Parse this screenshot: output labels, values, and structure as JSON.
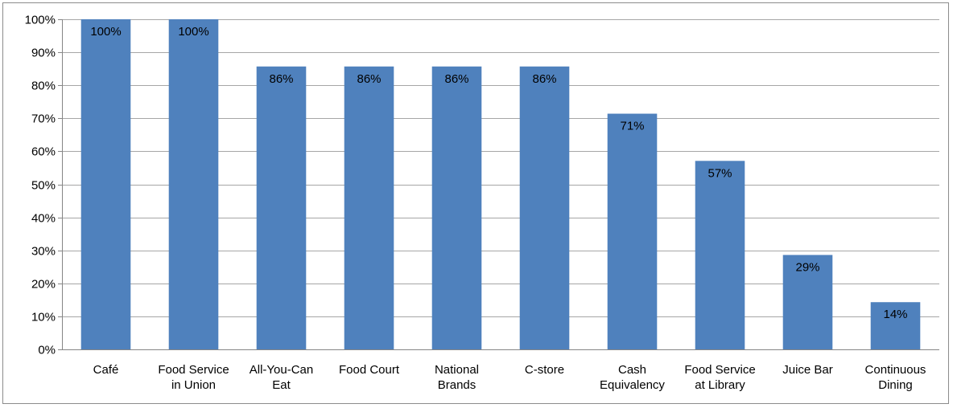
{
  "chart_data": {
    "type": "bar",
    "title": "",
    "xlabel": "",
    "ylabel": "",
    "ylim": [
      0,
      100
    ],
    "y_tick_step": 10,
    "y_tick_suffix": "%",
    "grid": true,
    "legend": "none",
    "bar_color": "#4f81bd",
    "grid_color": "#a6a6a6",
    "categories": [
      [
        "Café"
      ],
      [
        "Food Service",
        "in Union"
      ],
      [
        "All-You-Can",
        "Eat"
      ],
      [
        "Food Court"
      ],
      [
        "National",
        "Brands"
      ],
      [
        "C-store"
      ],
      [
        "Cash",
        "Equivalency"
      ],
      [
        "Food Service",
        "at Library"
      ],
      [
        "Juice Bar"
      ],
      [
        "Continuous",
        "Dining"
      ]
    ],
    "values": [
      100,
      100,
      85.7,
      85.7,
      85.7,
      85.7,
      71.4,
      57.1,
      28.6,
      14.3
    ],
    "data_labels": [
      "100%",
      "100%",
      "86%",
      "86%",
      "86%",
      "86%",
      "71%",
      "57%",
      "29%",
      "14%"
    ]
  }
}
